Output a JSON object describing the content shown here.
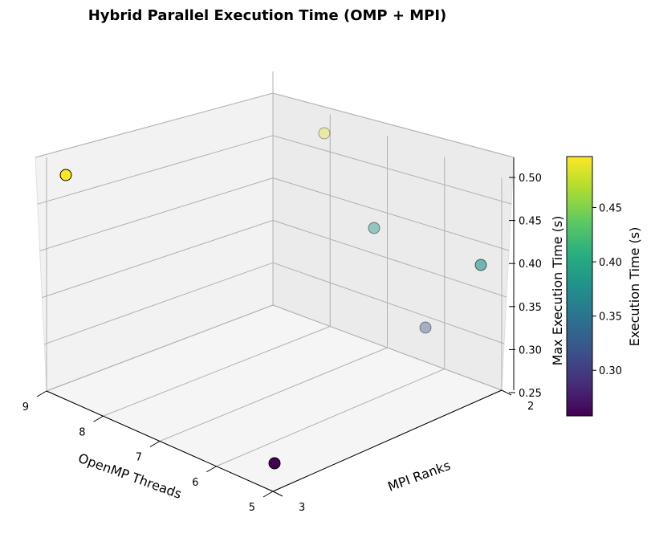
{
  "chart_data": {
    "type": "scatter",
    "title": "Hybrid Parallel Execution Time (OMP + MPI)",
    "xlabel": "OpenMP Threads",
    "ylabel": "MPI Ranks",
    "zlabel": "Max Execution Time (s)",
    "colorbar_label": "Execution Time (s)",
    "colormap": "viridis",
    "x_ticks": [
      "5",
      "6",
      "7",
      "8",
      "9"
    ],
    "y_ticks": [
      "3",
      "2"
    ],
    "z_ticks": [
      "0.25",
      "0.30",
      "0.35",
      "0.40",
      "0.45",
      "0.50"
    ],
    "colorbar_ticks": [
      "0.30",
      "0.35",
      "0.40",
      "0.45"
    ],
    "xlim": [
      5,
      9
    ],
    "ylim": [
      2,
      3
    ],
    "zlim": [
      0.25,
      0.5
    ],
    "clim": [
      0.258,
      0.497
    ],
    "grid": true,
    "points": [
      {
        "threads": 9,
        "ranks": 3,
        "time": 0.497
      },
      {
        "threads": 9,
        "ranks": 2,
        "time": 0.488
      },
      {
        "threads": 7,
        "ranks": 2,
        "time": 0.39
      },
      {
        "threads": 5,
        "ranks": 2,
        "time": 0.38
      },
      {
        "threads": 6,
        "ranks": 2,
        "time": 0.32
      },
      {
        "threads": 5,
        "ranks": 3,
        "time": 0.258
      }
    ]
  }
}
